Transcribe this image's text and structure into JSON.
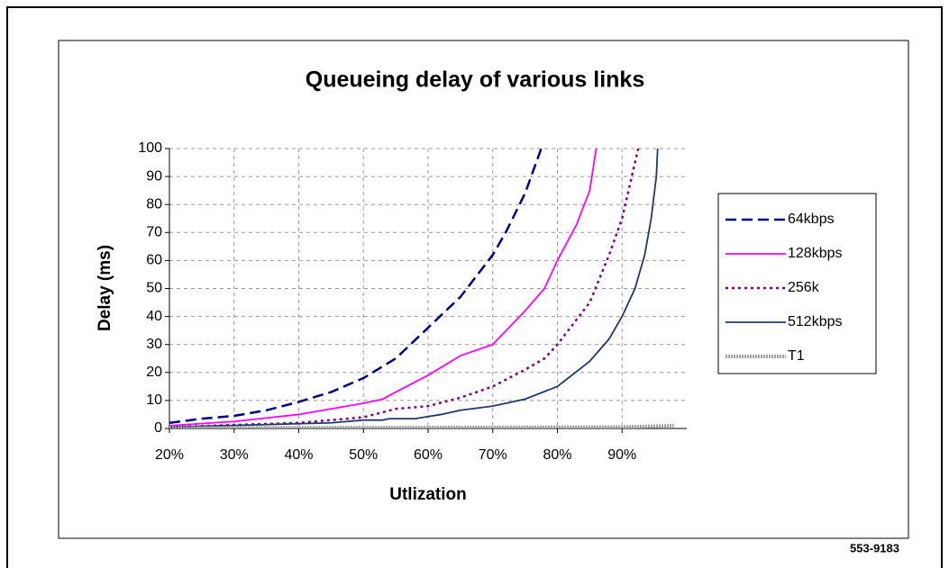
{
  "chart_data": {
    "type": "line",
    "title": "Queueing delay of various links",
    "xlabel": "Utlization",
    "ylabel": "Delay (ms)",
    "footnote": "553-9183",
    "xlim": [
      20,
      100
    ],
    "xticks": [
      {
        "value": 20,
        "label": "20%"
      },
      {
        "value": 30,
        "label": "30%"
      },
      {
        "value": 40,
        "label": "40%"
      },
      {
        "value": 50,
        "label": "50%"
      },
      {
        "value": 60,
        "label": "60%"
      },
      {
        "value": 70,
        "label": "70%"
      },
      {
        "value": 80,
        "label": "80%"
      },
      {
        "value": 90,
        "label": "90%"
      }
    ],
    "ylim": [
      0,
      100
    ],
    "yticks": [
      0,
      10,
      20,
      30,
      40,
      50,
      60,
      70,
      80,
      90,
      100
    ],
    "grid": true,
    "legend": "right",
    "series": [
      {
        "name": "64kbps",
        "color": "#000080",
        "dash": "dashed",
        "x": [
          20,
          25,
          30,
          35,
          40,
          45,
          50,
          55,
          60,
          65,
          70,
          72,
          75,
          77.5
        ],
        "values": [
          2,
          3.5,
          4.5,
          6.5,
          9.5,
          13,
          18,
          25,
          36,
          47,
          62,
          70,
          84,
          100
        ]
      },
      {
        "name": "128kbps",
        "color": "#ff00ff",
        "dash": "solid",
        "x": [
          20,
          30,
          40,
          50,
          53,
          55,
          60,
          65,
          70,
          75,
          78,
          80,
          83,
          85,
          86
        ],
        "values": [
          1,
          2.5,
          5,
          9,
          10.5,
          13,
          19,
          26,
          30,
          42,
          50,
          60,
          73,
          85,
          100
        ]
      },
      {
        "name": "256k",
        "color": "#800080",
        "dash": "dotted",
        "x": [
          20,
          40,
          50,
          55,
          60,
          65,
          70,
          75,
          78,
          80,
          85,
          88,
          90,
          91.5,
          92.5
        ],
        "values": [
          0.5,
          2,
          4,
          7,
          8,
          11,
          15,
          21,
          25,
          30,
          45,
          62,
          75,
          90,
          100
        ]
      },
      {
        "name": "512kbps",
        "color": "#1f3a68",
        "dash": "solid",
        "x": [
          20,
          45,
          50,
          53,
          54,
          58,
          62,
          65,
          70,
          75,
          80,
          85,
          88,
          90,
          92,
          93.5,
          94.5,
          95.3,
          95.5
        ],
        "values": [
          0.5,
          2,
          3,
          3,
          3.5,
          3.5,
          5,
          6.5,
          8,
          10.5,
          15,
          24,
          32,
          40,
          50,
          62,
          75,
          90,
          100
        ]
      },
      {
        "name": "T1",
        "color": "#a0a0a0",
        "dash": "hatched",
        "x": [
          20,
          60,
          90,
          98
        ],
        "values": [
          0.2,
          0.3,
          0.5,
          1
        ]
      }
    ]
  }
}
